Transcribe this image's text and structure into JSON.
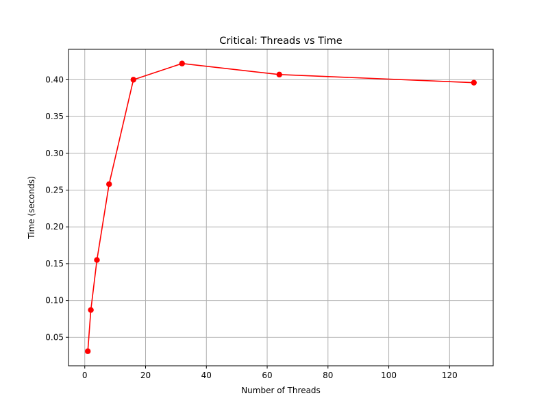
{
  "chart_data": {
    "type": "line",
    "title": "Critical: Threads vs Time",
    "xlabel": "Number of Threads",
    "ylabel": "Time (seconds)",
    "xlim": [
      -5.35,
      134.35
    ],
    "ylim": [
      0.0112,
      0.4413
    ],
    "xticks": [
      0,
      20,
      40,
      60,
      80,
      100,
      120
    ],
    "yticks": [
      0.05,
      0.1,
      0.15,
      0.2,
      0.25,
      0.3,
      0.35,
      0.4
    ],
    "grid": true,
    "series": [
      {
        "name": "",
        "color": "#ff0000",
        "marker": "circle",
        "x": [
          1,
          2,
          4,
          8,
          16,
          32,
          64,
          128
        ],
        "y": [
          0.031,
          0.087,
          0.155,
          0.258,
          0.4,
          0.422,
          0.407,
          0.396
        ]
      }
    ]
  }
}
